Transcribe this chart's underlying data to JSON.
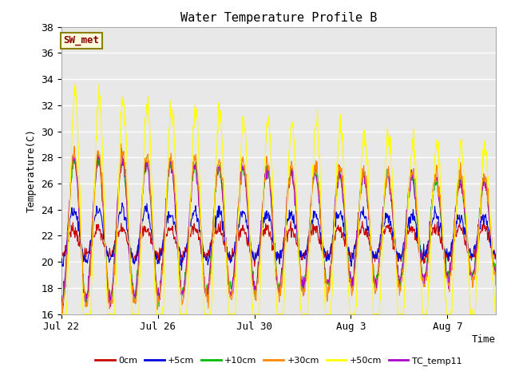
{
  "title": "Water Temperature Profile B",
  "xlabel": "Time",
  "ylabel": "Temperature(C)",
  "ylim": [
    16,
    38
  ],
  "yticks": [
    16,
    18,
    20,
    22,
    24,
    26,
    28,
    30,
    32,
    34,
    36,
    38
  ],
  "x_tick_labels": [
    "Jul 22",
    "Jul 26",
    "Jul 30",
    "Aug 3",
    "Aug 7"
  ],
  "x_tick_positions": [
    0,
    4,
    8,
    12,
    16
  ],
  "annotation_text": "SW_met",
  "annotation_color": "#8B0000",
  "annotation_bg": "#FFFFE0",
  "annotation_border": "#8B8000",
  "series_colors": {
    "0cm": "#CC0000",
    "+5cm": "#0000DD",
    "+10cm": "#00BB00",
    "+30cm": "#FF8800",
    "+50cm": "#FFFF00",
    "TC_temp11": "#AA00CC"
  },
  "legend_labels": [
    "0cm",
    "+5cm",
    "+10cm",
    "+30cm",
    "+50cm",
    "TC_temp11"
  ],
  "background_color": "#FFFFFF",
  "plot_bg_color": "#E8E8E8",
  "grid_color": "#FFFFFF",
  "n_days": 18,
  "total_points": 864
}
